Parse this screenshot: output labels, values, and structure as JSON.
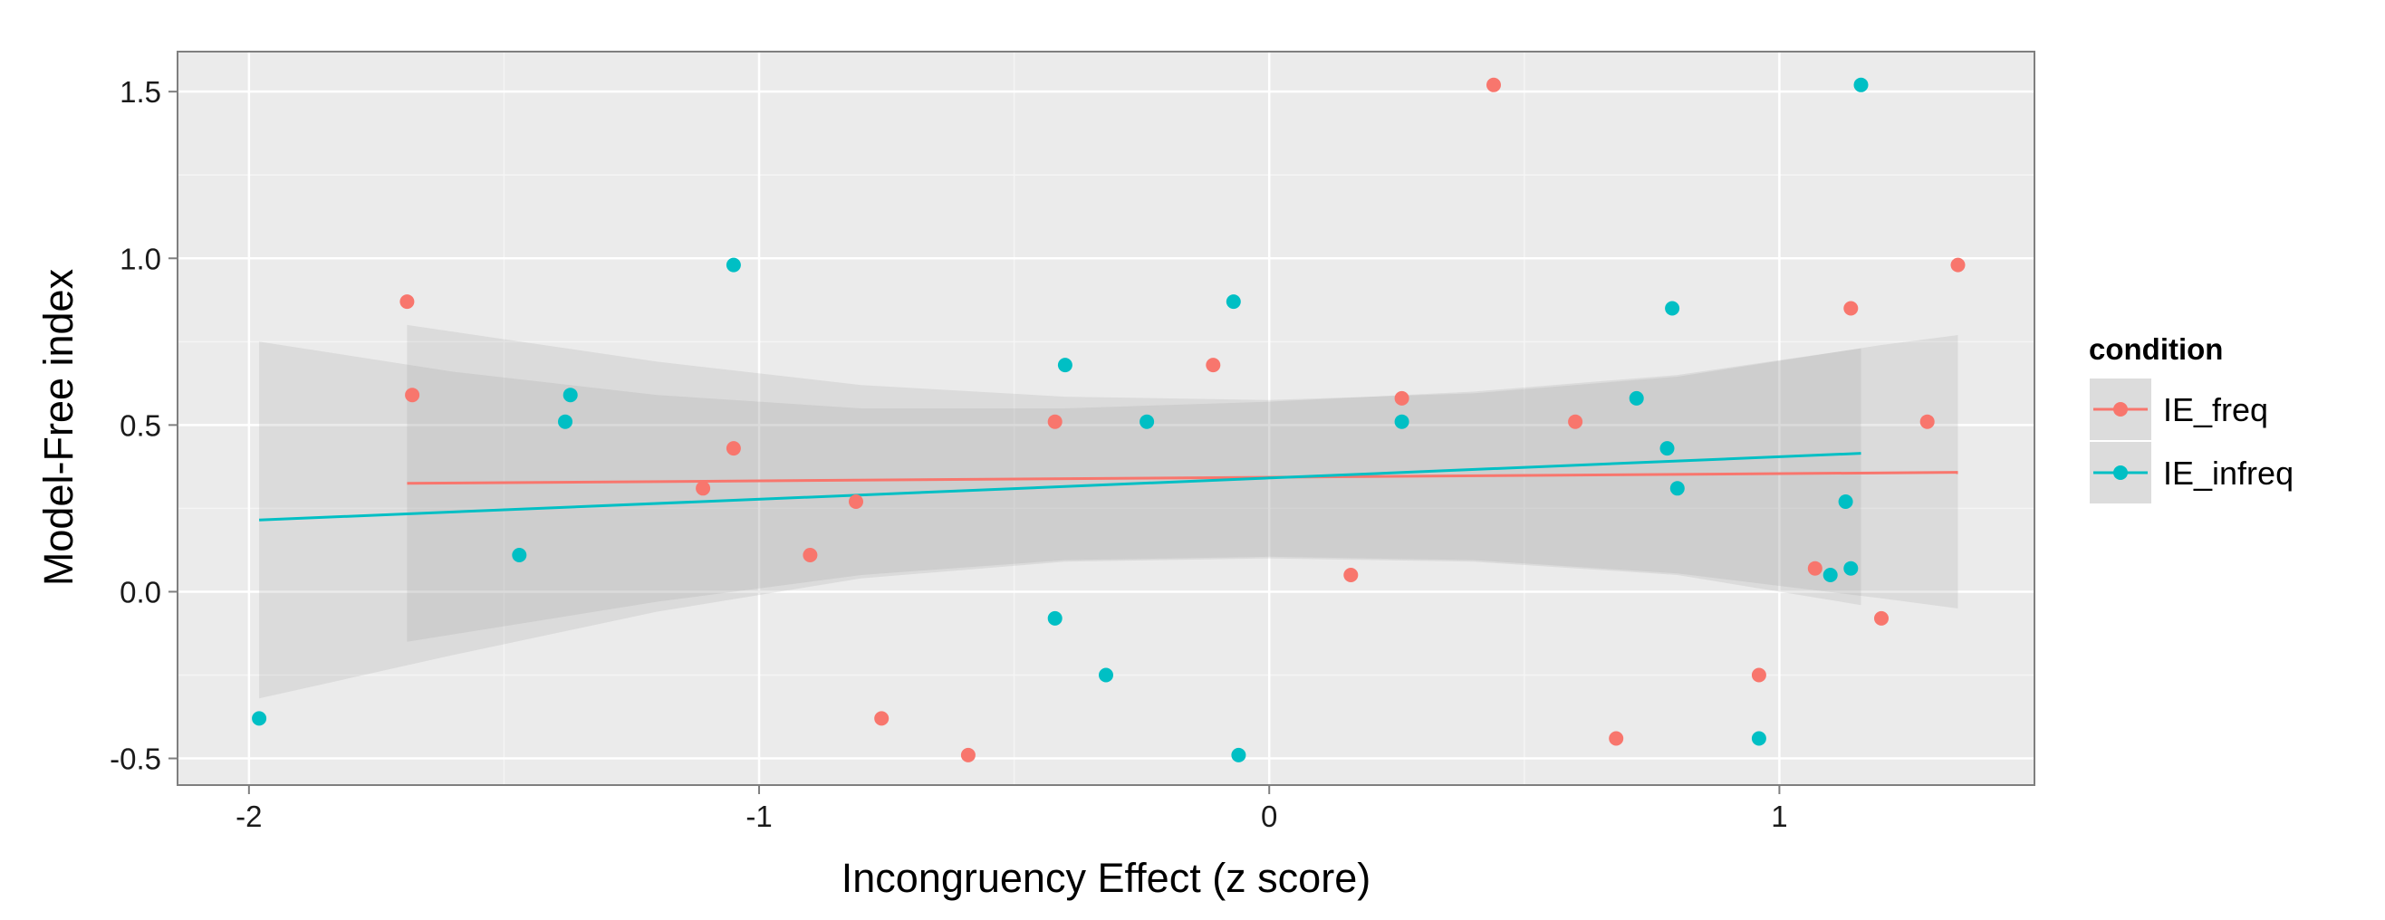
{
  "chart_data": {
    "type": "scatter",
    "title": "",
    "xlabel": "Incongruency Effect (z score)",
    "ylabel": "Model-Free index",
    "xlim": [
      -2.14,
      1.5
    ],
    "ylim": [
      -0.58,
      1.62
    ],
    "x_ticks": [
      -2,
      -1,
      0,
      1
    ],
    "x_tick_labels": [
      "-2",
      "-1",
      "0",
      "1"
    ],
    "y_ticks": [
      -0.5,
      0.0,
      0.5,
      1.0,
      1.5
    ],
    "y_tick_labels": [
      "-0.5",
      "0.0",
      "0.5",
      "1.0",
      "1.5"
    ],
    "grid": true,
    "background": "#ebebeb",
    "legend": {
      "title": "condition",
      "position": "right"
    },
    "series": [
      {
        "name": "IE_freq",
        "color": "#f8766d",
        "points": [
          [
            -1.69,
            0.87
          ],
          [
            -1.68,
            0.59
          ],
          [
            -1.11,
            0.31
          ],
          [
            -1.05,
            0.43
          ],
          [
            -0.9,
            0.11
          ],
          [
            -0.81,
            0.27
          ],
          [
            -0.76,
            -0.38
          ],
          [
            -0.59,
            -0.49
          ],
          [
            -0.42,
            0.51
          ],
          [
            -0.11,
            0.68
          ],
          [
            0.16,
            0.05
          ],
          [
            0.26,
            0.58
          ],
          [
            0.44,
            1.52
          ],
          [
            0.6,
            0.51
          ],
          [
            0.68,
            -0.44
          ],
          [
            0.96,
            -0.25
          ],
          [
            1.07,
            0.07
          ],
          [
            1.14,
            0.85
          ],
          [
            1.2,
            -0.08
          ],
          [
            1.29,
            0.51
          ],
          [
            1.35,
            0.98
          ]
        ],
        "trend": {
          "x": [
            -1.69,
            1.35
          ],
          "y": [
            0.325,
            0.358
          ]
        },
        "ci": {
          "x": [
            -1.69,
            -1.2,
            -0.8,
            -0.4,
            0.0,
            0.4,
            0.8,
            1.2,
            1.35
          ],
          "upper": [
            0.8,
            0.69,
            0.62,
            0.585,
            0.575,
            0.595,
            0.645,
            0.74,
            0.77
          ],
          "lower": [
            -0.15,
            -0.03,
            0.05,
            0.095,
            0.105,
            0.095,
            0.055,
            -0.02,
            -0.05
          ]
        }
      },
      {
        "name": "IE_infreq",
        "color": "#00bfc4",
        "points": [
          [
            -1.98,
            -0.38
          ],
          [
            -1.47,
            0.11
          ],
          [
            -1.38,
            0.51
          ],
          [
            -1.37,
            0.59
          ],
          [
            -1.05,
            0.98
          ],
          [
            -0.42,
            -0.08
          ],
          [
            -0.4,
            0.68
          ],
          [
            -0.32,
            -0.25
          ],
          [
            -0.24,
            0.51
          ],
          [
            -0.07,
            0.87
          ],
          [
            -0.06,
            -0.49
          ],
          [
            0.26,
            0.51
          ],
          [
            0.72,
            0.58
          ],
          [
            0.78,
            0.43
          ],
          [
            0.79,
            0.85
          ],
          [
            0.8,
            0.31
          ],
          [
            0.96,
            -0.44
          ],
          [
            1.1,
            0.05
          ],
          [
            1.13,
            0.27
          ],
          [
            1.14,
            0.07
          ],
          [
            1.16,
            1.52
          ]
        ],
        "trend": {
          "x": [
            -1.98,
            1.16
          ],
          "y": [
            0.215,
            0.415
          ]
        },
        "ci": {
          "x": [
            -1.98,
            -1.6,
            -1.2,
            -0.8,
            -0.4,
            0.0,
            0.4,
            0.8,
            1.16
          ],
          "upper": [
            0.75,
            0.66,
            0.59,
            0.55,
            0.55,
            0.57,
            0.6,
            0.65,
            0.73
          ],
          "lower": [
            -0.32,
            -0.19,
            -0.06,
            0.04,
            0.09,
            0.1,
            0.09,
            0.05,
            -0.04
          ]
        }
      }
    ]
  }
}
